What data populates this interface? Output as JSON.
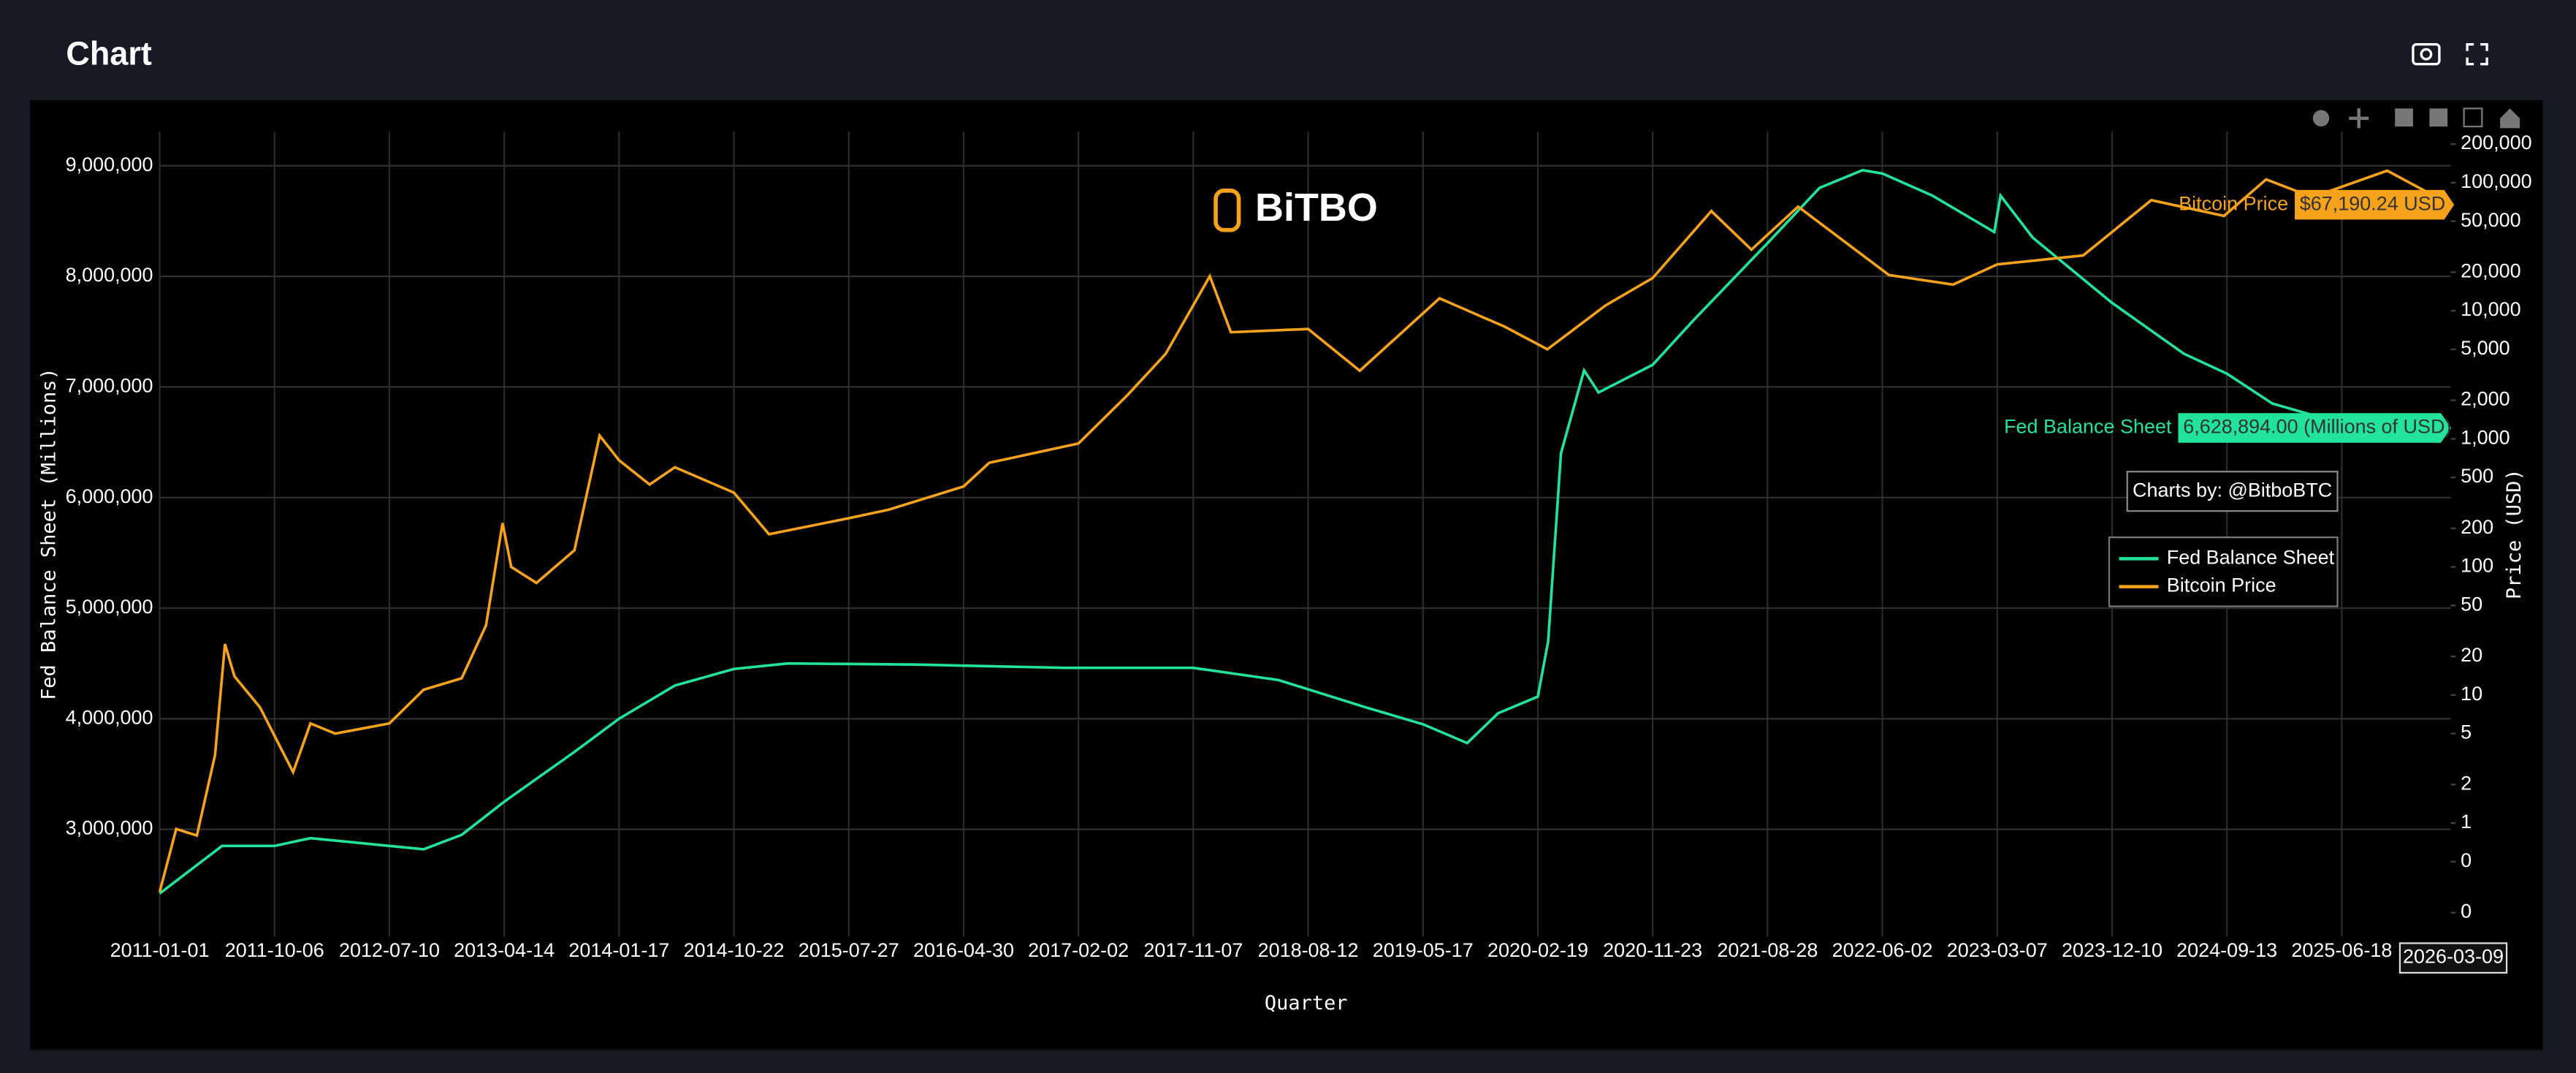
{
  "header": {
    "title": "Chart"
  },
  "chart_data": {
    "type": "line",
    "watermark": "BiTBO",
    "credit": "Charts by: @BitboBTC",
    "x_label": "Quarter",
    "y_label": "Fed Balance Sheet (Millions)",
    "y2_label": "Price (USD)",
    "xlim": [
      "2011-01-01",
      "2026-03-09"
    ],
    "xticks": [
      "2011-01-01",
      "2011-10-06",
      "2012-07-10",
      "2013-04-14",
      "2014-01-17",
      "2014-10-22",
      "2015-07-27",
      "2016-04-30",
      "2017-02-02",
      "2017-11-07",
      "2018-08-12",
      "2019-05-17",
      "2020-02-19",
      "2020-11-23",
      "2021-08-28",
      "2022-06-02",
      "2023-03-07",
      "2023-12-10",
      "2024-09-13",
      "2025-06-18"
    ],
    "ylim": [
      2030000,
      9310000
    ],
    "yticks": [
      {
        "value": 3000000,
        "label": "3,000,000"
      },
      {
        "value": 4000000,
        "label": "4,000,000"
      },
      {
        "value": 5000000,
        "label": "5,000,000"
      },
      {
        "value": 6000000,
        "label": "6,000,000"
      },
      {
        "value": 7000000,
        "label": "7,000,000"
      },
      {
        "value": 8000000,
        "label": "8,000,000"
      },
      {
        "value": 9000000,
        "label": "9,000,000"
      }
    ],
    "y2lim": [
      0.13,
      251000
    ],
    "y2_log": true,
    "y2ticks": [
      {
        "value": 0.2,
        "label": "0"
      },
      {
        "value": 0.5,
        "label": "0"
      },
      1,
      2,
      5,
      10,
      20,
      50,
      100,
      200,
      500,
      {
        "value": 1000,
        "label": "1,000"
      },
      {
        "value": 2000,
        "label": "2,000"
      },
      {
        "value": 5000,
        "label": "5,000"
      },
      {
        "value": 10000,
        "label": "10,000"
      },
      {
        "value": 20000,
        "label": "20,000"
      },
      {
        "value": 50000,
        "label": "50,000"
      },
      {
        "value": 100000,
        "label": "100,000"
      },
      {
        "value": 200000,
        "label": "200,000"
      }
    ],
    "grid": true,
    "legend": "right",
    "hover": {
      "x_label": "2026-03-09",
      "fed_label": "6,628,894.00 (Millions of USD)",
      "btc_label": "$67,190.24 USD"
    },
    "series": [
      {
        "name": "Fed Balance Sheet",
        "color": "#22e39a",
        "axis": "y",
        "x": [
          "2011-01-01",
          "2011-06-01",
          "2011-10-06",
          "2012-01-01",
          "2012-07-10",
          "2012-10-01",
          "2013-01-01",
          "2013-04-14",
          "2013-10-01",
          "2014-01-17",
          "2014-06-01",
          "2014-10-22",
          "2015-03-01",
          "2016-01-01",
          "2017-01-01",
          "2017-11-07",
          "2018-06-01",
          "2019-01-01",
          "2019-05-17",
          "2019-09-01",
          "2019-11-15",
          "2020-02-19",
          "2020-03-15",
          "2020-04-15",
          "2020-06-10",
          "2020-07-15",
          "2020-11-23",
          "2021-03-01",
          "2021-08-28",
          "2022-01-01",
          "2022-04-15",
          "2022-06-02",
          "2022-10-01",
          "2023-02-28",
          "2023-03-15",
          "2023-06-01",
          "2023-12-10",
          "2024-06-01",
          "2024-09-13",
          "2025-01-01",
          "2025-06-18",
          "2026-03-09"
        ],
        "values": [
          2420000,
          2850000,
          2850000,
          2920000,
          2850000,
          2820000,
          2950000,
          3250000,
          3700000,
          4000000,
          4300000,
          4450000,
          4500000,
          4490000,
          4460000,
          4460000,
          4350000,
          4100000,
          3950000,
          3780000,
          4050000,
          4200000,
          4700000,
          6400000,
          7150000,
          6950000,
          7200000,
          7600000,
          8300000,
          8800000,
          8960000,
          8930000,
          8730000,
          8400000,
          8730000,
          8350000,
          7760000,
          7300000,
          7120000,
          6850000,
          6670000,
          6628894
        ]
      },
      {
        "name": "Bitcoin Price",
        "color": "#f7a21b",
        "axis": "y2",
        "x": [
          "2011-01-01",
          "2011-02-10",
          "2011-04-01",
          "2011-05-15",
          "2011-06-08",
          "2011-07-01",
          "2011-09-01",
          "2011-10-06",
          "2011-11-20",
          "2012-01-01",
          "2012-03-01",
          "2012-07-10",
          "2012-10-01",
          "2013-01-01",
          "2013-03-01",
          "2013-04-10",
          "2013-05-01",
          "2013-07-01",
          "2013-10-01",
          "2013-12-01",
          "2014-01-17",
          "2014-04-01",
          "2014-06-01",
          "2014-10-22",
          "2015-01-15",
          "2015-07-27",
          "2015-11-01",
          "2016-04-30",
          "2016-07-01",
          "2017-02-02",
          "2017-06-01",
          "2017-09-01",
          "2017-12-17",
          "2018-02-06",
          "2018-08-12",
          "2018-12-15",
          "2019-06-26",
          "2019-12-01",
          "2020-03-13",
          "2020-08-01",
          "2020-11-23",
          "2021-04-14",
          "2021-07-20",
          "2021-11-10",
          "2022-06-18",
          "2022-11-20",
          "2023-03-07",
          "2023-10-01",
          "2024-03-14",
          "2024-09-06",
          "2024-12-17",
          "2025-04-08",
          "2025-10-06",
          "2026-03-09"
        ],
        "values": [
          0.29,
          0.9,
          0.8,
          3.4,
          25,
          14,
          8,
          4.8,
          2.5,
          6,
          5,
          6,
          11,
          13.5,
          35,
          220,
          100,
          75,
          135,
          1060,
          680,
          440,
          600,
          380,
          180,
          240,
          280,
          425,
          650,
          920,
          2200,
          4600,
          18600,
          6800,
          7200,
          3400,
          12500,
          7500,
          5000,
          11000,
          18000,
          60000,
          30000,
          65000,
          19000,
          16000,
          23000,
          27000,
          73000,
          55000,
          106000,
          77000,
          124000,
          67190.24
        ]
      }
    ]
  }
}
